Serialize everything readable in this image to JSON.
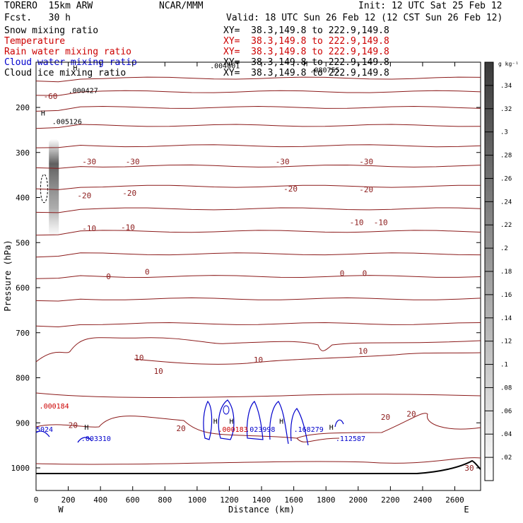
{
  "header": {
    "model": "TORERO  15km ARW",
    "org": "NCAR/MMM",
    "init": "Init: 12 UTC Sat 25 Feb 12",
    "fcst": "Fcst.   30 h",
    "valid": "Valid: 18 UTC Sun 26 Feb 12 (12 CST Sun 26 Feb 12)",
    "fields": [
      {
        "label": "Snow mixing ratio",
        "xy": "XY=  38.3,149.8 to 222.9,149.8",
        "color": "black"
      },
      {
        "label": "Temperature",
        "xy": "XY=  38.3,149.8 to 222.9,149.8",
        "color": "red"
      },
      {
        "label": "Rain water mixing ratio",
        "xy": "XY=  38.3,149.8 to 222.9,149.8",
        "color": "red"
      },
      {
        "label": "Cloud water mixing ratio",
        "xy": "XY=  38.3,149.8 to 222.9,149.8",
        "color": "blue"
      },
      {
        "label": "Cloud ice mixing ratio",
        "xy": "XY=  38.3,149.8 to 222.9,149.8",
        "color": "black"
      }
    ]
  },
  "chart_data": {
    "type": "cross-section contour",
    "xlabel": "Distance (km)",
    "ylabel": "Pressure (hPa)",
    "xlim": [
      0,
      2760
    ],
    "ylim": [
      1050,
      100
    ],
    "x_ticks": [
      0,
      200,
      400,
      600,
      800,
      1000,
      1200,
      1400,
      1600,
      1800,
      2000,
      2200,
      2400,
      2600
    ],
    "y_ticks": [
      200,
      300,
      400,
      500,
      600,
      700,
      800,
      900,
      1000
    ],
    "left_end": "W",
    "right_end": "E",
    "colorbar": {
      "unit": "g kg⁻¹",
      "ticks": [
        ".02",
        ".04",
        ".06",
        ".08",
        ".1",
        ".12",
        ".14",
        ".16",
        ".18",
        ".2",
        ".22",
        ".24",
        ".26",
        ".28",
        ".3",
        ".32",
        ".34"
      ]
    },
    "temperature_labels": [
      {
        "text": "-60",
        "x": 90,
        "p": 175
      },
      {
        "text": "-30",
        "x": 330,
        "p": 320
      },
      {
        "text": "-30",
        "x": 600,
        "p": 320
      },
      {
        "text": "-30",
        "x": 1530,
        "p": 320
      },
      {
        "text": "-30",
        "x": 2050,
        "p": 320
      },
      {
        "text": "-20",
        "x": 300,
        "p": 395
      },
      {
        "text": "-20",
        "x": 580,
        "p": 390
      },
      {
        "text": "-20",
        "x": 1580,
        "p": 380
      },
      {
        "text": "-20",
        "x": 2050,
        "p": 382
      },
      {
        "text": "-10",
        "x": 330,
        "p": 468
      },
      {
        "text": "-10",
        "x": 570,
        "p": 466
      },
      {
        "text": "-10",
        "x": 1990,
        "p": 455
      },
      {
        "text": "-10",
        "x": 2140,
        "p": 455
      },
      {
        "text": "0",
        "x": 450,
        "p": 575
      },
      {
        "text": "0",
        "x": 690,
        "p": 565
      },
      {
        "text": "0",
        "x": 1900,
        "p": 568
      },
      {
        "text": "0",
        "x": 2040,
        "p": 568
      },
      {
        "text": "10",
        "x": 640,
        "p": 755
      },
      {
        "text": "10",
        "x": 760,
        "p": 785
      },
      {
        "text": "10",
        "x": 1380,
        "p": 760
      },
      {
        "text": "10",
        "x": 2030,
        "p": 740
      },
      {
        "text": "20",
        "x": 230,
        "p": 905
      },
      {
        "text": "20",
        "x": 900,
        "p": 912
      },
      {
        "text": "20",
        "x": 2170,
        "p": 887
      },
      {
        "text": "20",
        "x": 2330,
        "p": 880
      },
      {
        "text": "30",
        "x": 2690,
        "p": 1000
      }
    ],
    "temperature_isobar_levels": [
      135,
      165,
      200,
      240,
      285,
      330,
      375,
      425,
      475,
      525,
      575,
      625,
      680
    ],
    "freezing_level_p": 570,
    "extrema": [
      {
        "text": ".000427",
        "x": 200,
        "p": 168,
        "color": "black"
      },
      {
        "text": ".004001",
        "x": 1080,
        "p": 113,
        "color": "black"
      },
      {
        "text": ".080755",
        "x": 1700,
        "p": 122,
        "color": "black"
      },
      {
        "text": ".005126",
        "x": 100,
        "p": 237,
        "color": "black"
      },
      {
        "text": ".000184",
        "x": 20,
        "p": 868,
        "color": "red"
      },
      {
        "text": ".000183",
        "x": 1130,
        "p": 920,
        "color": "red"
      },
      {
        "text": "5024",
        "x": 0,
        "p": 920,
        "color": "blue"
      },
      {
        "text": ".003310",
        "x": 280,
        "p": 940,
        "color": "blue"
      },
      {
        "text": ".023998",
        "x": 1300,
        "p": 920,
        "color": "blue"
      },
      {
        "text": ".168279",
        "x": 1600,
        "p": 920,
        "color": "blue"
      },
      {
        "text": ".112587",
        "x": 1860,
        "p": 940,
        "color": "blue"
      }
    ],
    "h_markers": [
      {
        "text": "H",
        "x": 230,
        "p": 118
      },
      {
        "text": "H",
        "x": 1660,
        "p": 108
      },
      {
        "text": "H",
        "x": 30,
        "p": 218
      },
      {
        "text": "H",
        "x": 1100,
        "p": 902
      },
      {
        "text": "H",
        "x": 1200,
        "p": 902
      },
      {
        "text": "H",
        "x": 1510,
        "p": 902
      },
      {
        "text": "H",
        "x": 300,
        "p": 915
      },
      {
        "text": "H",
        "x": 1820,
        "p": 915
      }
    ],
    "colors": {
      "temperature": "#8b1a1a",
      "cloud_water": "#0000cc",
      "rain": "#cc0000",
      "snow": "#000000"
    }
  }
}
